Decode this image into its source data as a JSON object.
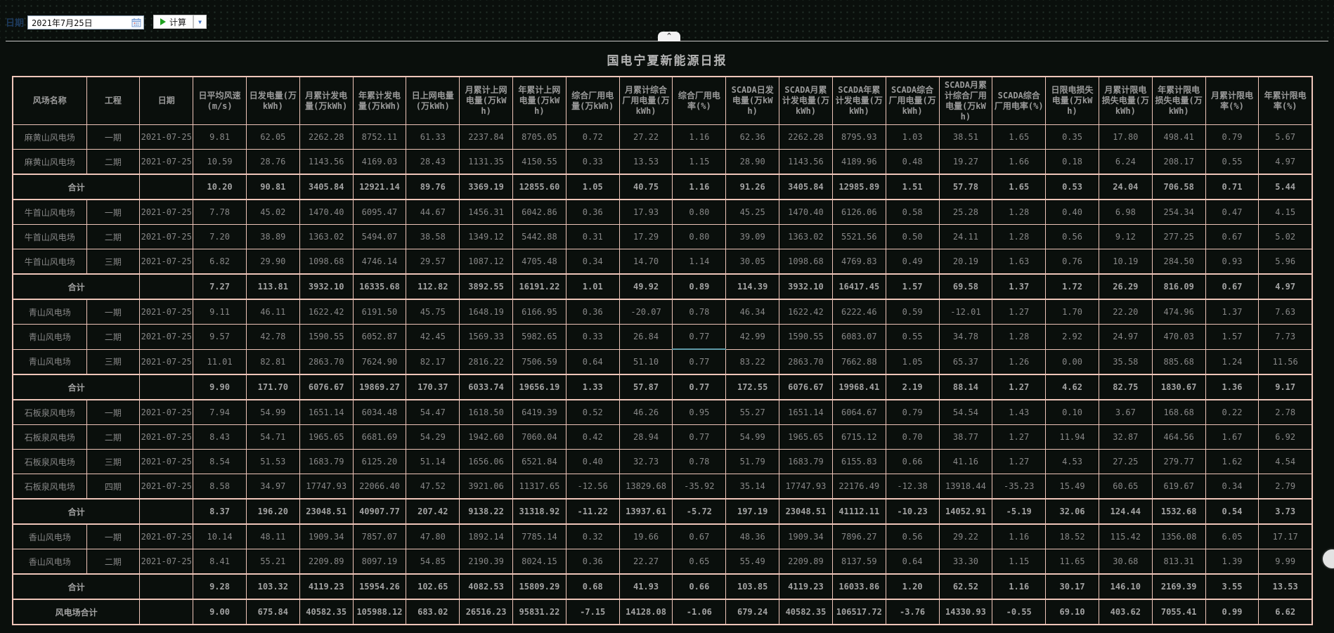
{
  "toolbar": {
    "date_label": "日期",
    "date_value": "2021年7月25日",
    "calculate_label": "计算",
    "dropdown_glyph": "▼"
  },
  "panel": {
    "collapse_glyph": "^",
    "title": "国电宁夏新能源日报"
  },
  "colors": {
    "background": "#0a0f0c",
    "table_border": "#eec5b9",
    "cell_text": "#878787",
    "accent_green": "#1fa11f",
    "accent_blue": "#3a6fc4"
  },
  "report": {
    "columns": [
      "风场名称",
      "工程",
      "日期",
      "日平均风速(m/s)",
      "日发电量(万kWh)",
      "月累计发电量(万kWh)",
      "年累计发电量(万kWh)",
      "日上网电量(万kWh)",
      "月累计上网电量(万kWh)",
      "年累计上网电量(万kWh)",
      "综合厂用电量(万kWh)",
      "月累计综合厂用电量(万kWh)",
      "综合厂用电率(%)",
      "SCADA日发电量(万kWh)",
      "SCADA月累计发电量(万kWh)",
      "SCADA年累计发电量(万kWh)",
      "SCADA综合厂用电量(万kWh)",
      "SCADA月累计综合厂用电量(万kWh)",
      "SCADA综合厂用电率(%)",
      "日限电损失电量(万kWh)",
      "月累计限电损失电量(万kWh)",
      "年累计限电损失电量(万kWh)",
      "月累计限电率(%)",
      "年累计限电率(%)"
    ],
    "rows": [
      {
        "kind": "data",
        "farm": "麻黄山风电场",
        "phase": "一期",
        "date": "2021-07-25",
        "values": [
          "9.81",
          "62.05",
          "2262.28",
          "8752.11",
          "61.33",
          "2237.84",
          "8705.05",
          "0.72",
          "27.22",
          "1.16",
          "62.36",
          "2262.28",
          "8795.93",
          "1.03",
          "38.51",
          "1.65",
          "0.35",
          "17.80",
          "498.41",
          "0.79",
          "5.67"
        ]
      },
      {
        "kind": "data",
        "farm": "麻黄山风电场",
        "phase": "二期",
        "date": "2021-07-25",
        "values": [
          "10.59",
          "28.76",
          "1143.56",
          "4169.03",
          "28.43",
          "1131.35",
          "4150.55",
          "0.33",
          "13.53",
          "1.15",
          "28.90",
          "1143.56",
          "4189.96",
          "0.48",
          "19.27",
          "1.66",
          "0.18",
          "6.24",
          "208.17",
          "0.55",
          "4.97"
        ]
      },
      {
        "kind": "subtotal",
        "farm": "合计",
        "phase": "",
        "date": "",
        "values": [
          "10.20",
          "90.81",
          "3405.84",
          "12921.14",
          "89.76",
          "3369.19",
          "12855.60",
          "1.05",
          "40.75",
          "1.16",
          "91.26",
          "3405.84",
          "12985.89",
          "1.51",
          "57.78",
          "1.65",
          "0.53",
          "24.04",
          "706.58",
          "0.71",
          "5.44"
        ]
      },
      {
        "kind": "data",
        "farm": "牛首山风电场",
        "phase": "一期",
        "date": "2021-07-25",
        "values": [
          "7.78",
          "45.02",
          "1470.40",
          "6095.47",
          "44.67",
          "1456.31",
          "6042.86",
          "0.36",
          "17.93",
          "0.80",
          "45.25",
          "1470.40",
          "6126.06",
          "0.58",
          "25.28",
          "1.28",
          "0.40",
          "6.98",
          "254.34",
          "0.47",
          "4.15"
        ]
      },
      {
        "kind": "data",
        "farm": "牛首山风电场",
        "phase": "二期",
        "date": "2021-07-25",
        "values": [
          "7.20",
          "38.89",
          "1363.02",
          "5494.07",
          "38.58",
          "1349.12",
          "5442.88",
          "0.31",
          "17.29",
          "0.80",
          "39.09",
          "1363.02",
          "5521.56",
          "0.50",
          "24.11",
          "1.28",
          "0.56",
          "9.12",
          "277.25",
          "0.67",
          "5.02"
        ]
      },
      {
        "kind": "data",
        "farm": "牛首山风电场",
        "phase": "三期",
        "date": "2021-07-25",
        "values": [
          "6.82",
          "29.90",
          "1098.68",
          "4746.14",
          "29.57",
          "1087.12",
          "4705.48",
          "0.34",
          "14.70",
          "1.14",
          "30.05",
          "1098.68",
          "4769.83",
          "0.49",
          "20.19",
          "1.63",
          "0.76",
          "10.19",
          "284.50",
          "0.93",
          "5.96"
        ]
      },
      {
        "kind": "subtotal",
        "farm": "合计",
        "phase": "",
        "date": "",
        "values": [
          "7.27",
          "113.81",
          "3932.10",
          "16335.68",
          "112.82",
          "3892.55",
          "16191.22",
          "1.01",
          "49.92",
          "0.89",
          "114.39",
          "3932.10",
          "16417.45",
          "1.57",
          "69.58",
          "1.37",
          "1.72",
          "26.29",
          "816.09",
          "0.67",
          "4.97"
        ]
      },
      {
        "kind": "data",
        "farm": "青山风电场",
        "phase": "一期",
        "date": "2021-07-25",
        "values": [
          "9.11",
          "46.11",
          "1622.42",
          "6191.50",
          "45.75",
          "1648.19",
          "6166.95",
          "0.36",
          "-20.07",
          "0.78",
          "46.34",
          "1622.42",
          "6222.46",
          "0.59",
          "-12.01",
          "1.27",
          "1.70",
          "22.20",
          "474.96",
          "1.37",
          "7.63"
        ]
      },
      {
        "kind": "data",
        "farm": "青山风电场",
        "phase": "二期",
        "date": "2021-07-25",
        "values": [
          "9.57",
          "42.78",
          "1590.55",
          "6052.87",
          "42.45",
          "1569.33",
          "5982.65",
          "0.33",
          "26.84",
          "0.77",
          "42.99",
          "1590.55",
          "6083.07",
          "0.55",
          "34.78",
          "1.28",
          "2.92",
          "24.97",
          "470.03",
          "1.57",
          "7.73"
        ]
      },
      {
        "kind": "data",
        "farm": "青山风电场",
        "phase": "三期",
        "date": "2021-07-25",
        "values": [
          "11.01",
          "82.81",
          "2863.70",
          "7624.90",
          "82.17",
          "2816.22",
          "7506.59",
          "0.64",
          "51.10",
          "0.77",
          "83.22",
          "2863.70",
          "7662.88",
          "1.05",
          "65.37",
          "1.26",
          "0.00",
          "35.58",
          "885.68",
          "1.24",
          "11.56"
        ]
      },
      {
        "kind": "subtotal",
        "farm": "合计",
        "phase": "",
        "date": "",
        "values": [
          "9.90",
          "171.70",
          "6076.67",
          "19869.27",
          "170.37",
          "6033.74",
          "19656.19",
          "1.33",
          "57.87",
          "0.77",
          "172.55",
          "6076.67",
          "19968.41",
          "2.19",
          "88.14",
          "1.27",
          "4.62",
          "82.75",
          "1830.67",
          "1.36",
          "9.17"
        ]
      },
      {
        "kind": "data",
        "farm": "石板泉风电场",
        "phase": "一期",
        "date": "2021-07-25",
        "values": [
          "7.94",
          "54.99",
          "1651.14",
          "6034.48",
          "54.47",
          "1618.50",
          "6419.39",
          "0.52",
          "46.26",
          "0.95",
          "55.27",
          "1651.14",
          "6064.67",
          "0.79",
          "54.54",
          "1.43",
          "0.10",
          "3.67",
          "168.68",
          "0.22",
          "2.78"
        ]
      },
      {
        "kind": "data",
        "farm": "石板泉风电场",
        "phase": "二期",
        "date": "2021-07-25",
        "values": [
          "8.43",
          "54.71",
          "1965.65",
          "6681.69",
          "54.29",
          "1942.60",
          "7060.04",
          "0.42",
          "28.94",
          "0.77",
          "54.99",
          "1965.65",
          "6715.12",
          "0.70",
          "38.77",
          "1.27",
          "11.94",
          "32.87",
          "464.56",
          "1.67",
          "6.92"
        ]
      },
      {
        "kind": "data",
        "farm": "石板泉风电场",
        "phase": "三期",
        "date": "2021-07-25",
        "values": [
          "8.54",
          "51.53",
          "1683.79",
          "6125.20",
          "51.14",
          "1656.06",
          "6521.84",
          "0.40",
          "32.73",
          "0.78",
          "51.79",
          "1683.79",
          "6155.83",
          "0.66",
          "41.16",
          "1.27",
          "4.53",
          "27.25",
          "279.77",
          "1.62",
          "4.54"
        ]
      },
      {
        "kind": "data",
        "farm": "石板泉风电场",
        "phase": "四期",
        "date": "2021-07-25",
        "values": [
          "8.58",
          "34.97",
          "17747.93",
          "22066.40",
          "47.52",
          "3921.06",
          "11317.65",
          "-12.56",
          "13829.68",
          "-35.92",
          "35.14",
          "17747.93",
          "22176.49",
          "-12.38",
          "13918.44",
          "-35.23",
          "15.49",
          "60.65",
          "619.67",
          "0.34",
          "2.79"
        ]
      },
      {
        "kind": "subtotal",
        "farm": "合计",
        "phase": "",
        "date": "",
        "values": [
          "8.37",
          "196.20",
          "23048.51",
          "40907.77",
          "207.42",
          "9138.22",
          "31318.92",
          "-11.22",
          "13937.61",
          "-5.72",
          "197.19",
          "23048.51",
          "41112.11",
          "-10.23",
          "14052.91",
          "-5.19",
          "32.06",
          "124.44",
          "1532.68",
          "0.54",
          "3.73"
        ]
      },
      {
        "kind": "data",
        "farm": "香山风电场",
        "phase": "一期",
        "date": "2021-07-25",
        "values": [
          "10.14",
          "48.11",
          "1909.34",
          "7857.07",
          "47.80",
          "1892.14",
          "7785.14",
          "0.32",
          "19.66",
          "0.67",
          "48.36",
          "1909.34",
          "7896.27",
          "0.56",
          "29.22",
          "1.16",
          "18.52",
          "115.42",
          "1356.08",
          "6.05",
          "17.17"
        ]
      },
      {
        "kind": "data",
        "farm": "香山风电场",
        "phase": "二期",
        "date": "2021-07-25",
        "values": [
          "8.41",
          "55.21",
          "2209.89",
          "8097.19",
          "54.85",
          "2190.39",
          "8024.15",
          "0.36",
          "22.27",
          "0.65",
          "55.49",
          "2209.89",
          "8137.59",
          "0.64",
          "33.30",
          "1.15",
          "11.65",
          "30.68",
          "813.31",
          "1.39",
          "9.99"
        ]
      },
      {
        "kind": "subtotal",
        "farm": "合计",
        "phase": "",
        "date": "",
        "values": [
          "9.28",
          "103.32",
          "4119.23",
          "15954.26",
          "102.65",
          "4082.53",
          "15809.29",
          "0.68",
          "41.93",
          "0.66",
          "103.85",
          "4119.23",
          "16033.86",
          "1.20",
          "62.52",
          "1.16",
          "30.17",
          "146.10",
          "2169.39",
          "3.55",
          "13.53"
        ]
      },
      {
        "kind": "grand",
        "farm": "风电场合计",
        "phase": "",
        "date": "",
        "values": [
          "9.00",
          "675.84",
          "40582.35",
          "105988.12",
          "683.02",
          "26516.23",
          "95831.22",
          "-7.15",
          "14128.08",
          "-1.06",
          "679.24",
          "40582.35",
          "106517.72",
          "-3.76",
          "14330.93",
          "-0.55",
          "69.10",
          "403.62",
          "7055.41",
          "0.99",
          "6.62"
        ]
      }
    ],
    "highlights": {
      "selected_cell": {
        "row_index": 9,
        "value_index": 20
      },
      "teal_underline_cell": {
        "row_index": 8,
        "value_index": 9
      }
    }
  }
}
